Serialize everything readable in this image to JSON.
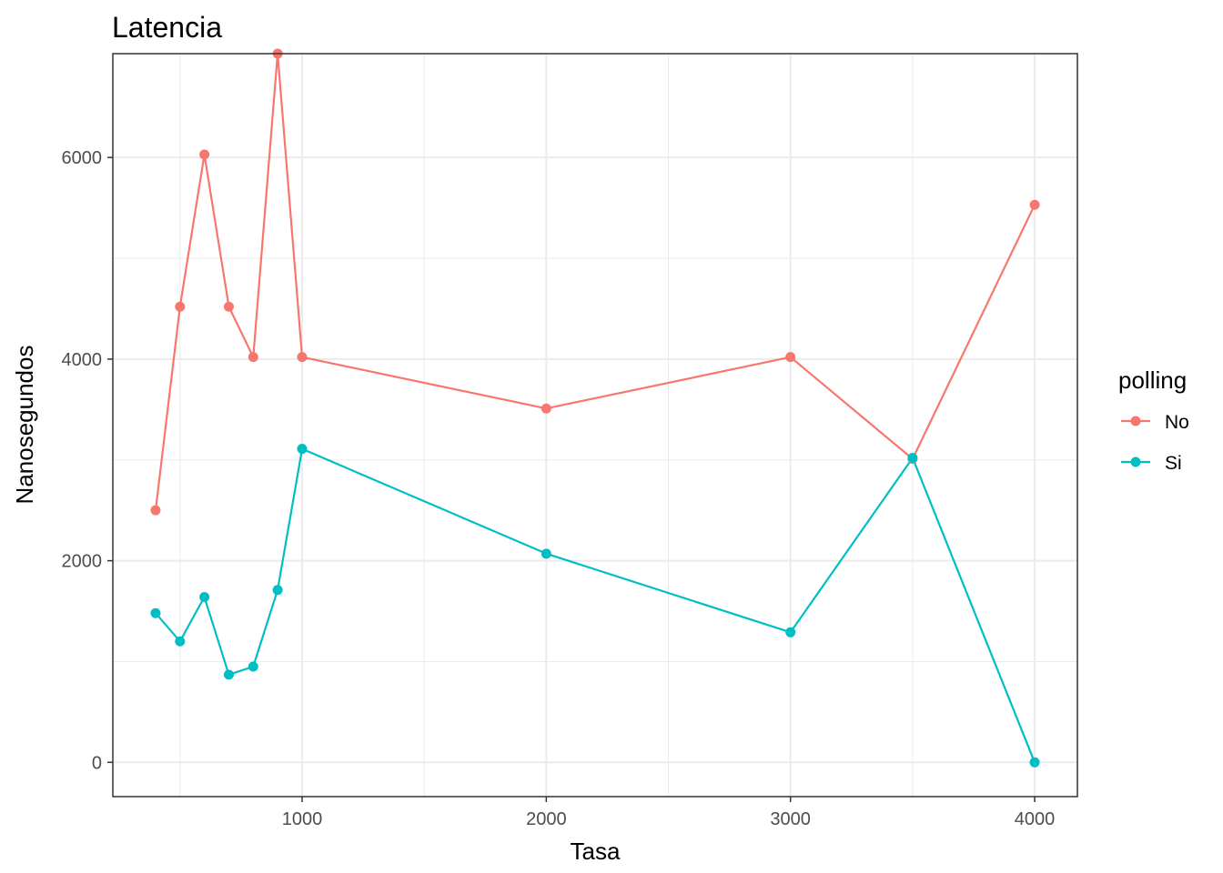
{
  "chart_data": {
    "type": "line",
    "title": "Latencia",
    "xlabel": "Tasa",
    "ylabel": "Nanosegundos",
    "xlim": [
      225,
      4175
    ],
    "ylim": [
      -340,
      7030
    ],
    "x_ticks": [
      1000,
      2000,
      3000,
      4000
    ],
    "x_tick_labels": [
      "1000",
      "2000",
      "3000",
      "4000"
    ],
    "x_minor_ticks": [
      500,
      1500,
      2500,
      3500
    ],
    "y_ticks": [
      0,
      2000,
      4000,
      6000
    ],
    "y_tick_labels": [
      "0",
      "2000",
      "4000",
      "6000"
    ],
    "y_minor_ticks": [
      1000,
      3000,
      5000
    ],
    "grid": true,
    "legend": {
      "title": "polling",
      "placement": "right"
    },
    "series": [
      {
        "name": "No",
        "color": "#F8766D",
        "points": [
          {
            "x": 400,
            "y": 2500
          },
          {
            "x": 500,
            "y": 4520
          },
          {
            "x": 600,
            "y": 6030
          },
          {
            "x": 700,
            "y": 4520
          },
          {
            "x": 800,
            "y": 4020
          },
          {
            "x": 900,
            "y": 7030
          },
          {
            "x": 1000,
            "y": 4020
          },
          {
            "x": 2000,
            "y": 3510
          },
          {
            "x": 3000,
            "y": 4020
          },
          {
            "x": 3500,
            "y": 3010
          },
          {
            "x": 4000,
            "y": 5530
          }
        ]
      },
      {
        "name": "Si",
        "color": "#00BFC4",
        "points": [
          {
            "x": 400,
            "y": 1480
          },
          {
            "x": 500,
            "y": 1200
          },
          {
            "x": 600,
            "y": 1640
          },
          {
            "x": 700,
            "y": 870
          },
          {
            "x": 800,
            "y": 950
          },
          {
            "x": 900,
            "y": 1710
          },
          {
            "x": 1000,
            "y": 3110
          },
          {
            "x": 2000,
            "y": 2070
          },
          {
            "x": 3000,
            "y": 1290
          },
          {
            "x": 3500,
            "y": 3020
          },
          {
            "x": 4000,
            "y": 0
          }
        ]
      }
    ]
  }
}
